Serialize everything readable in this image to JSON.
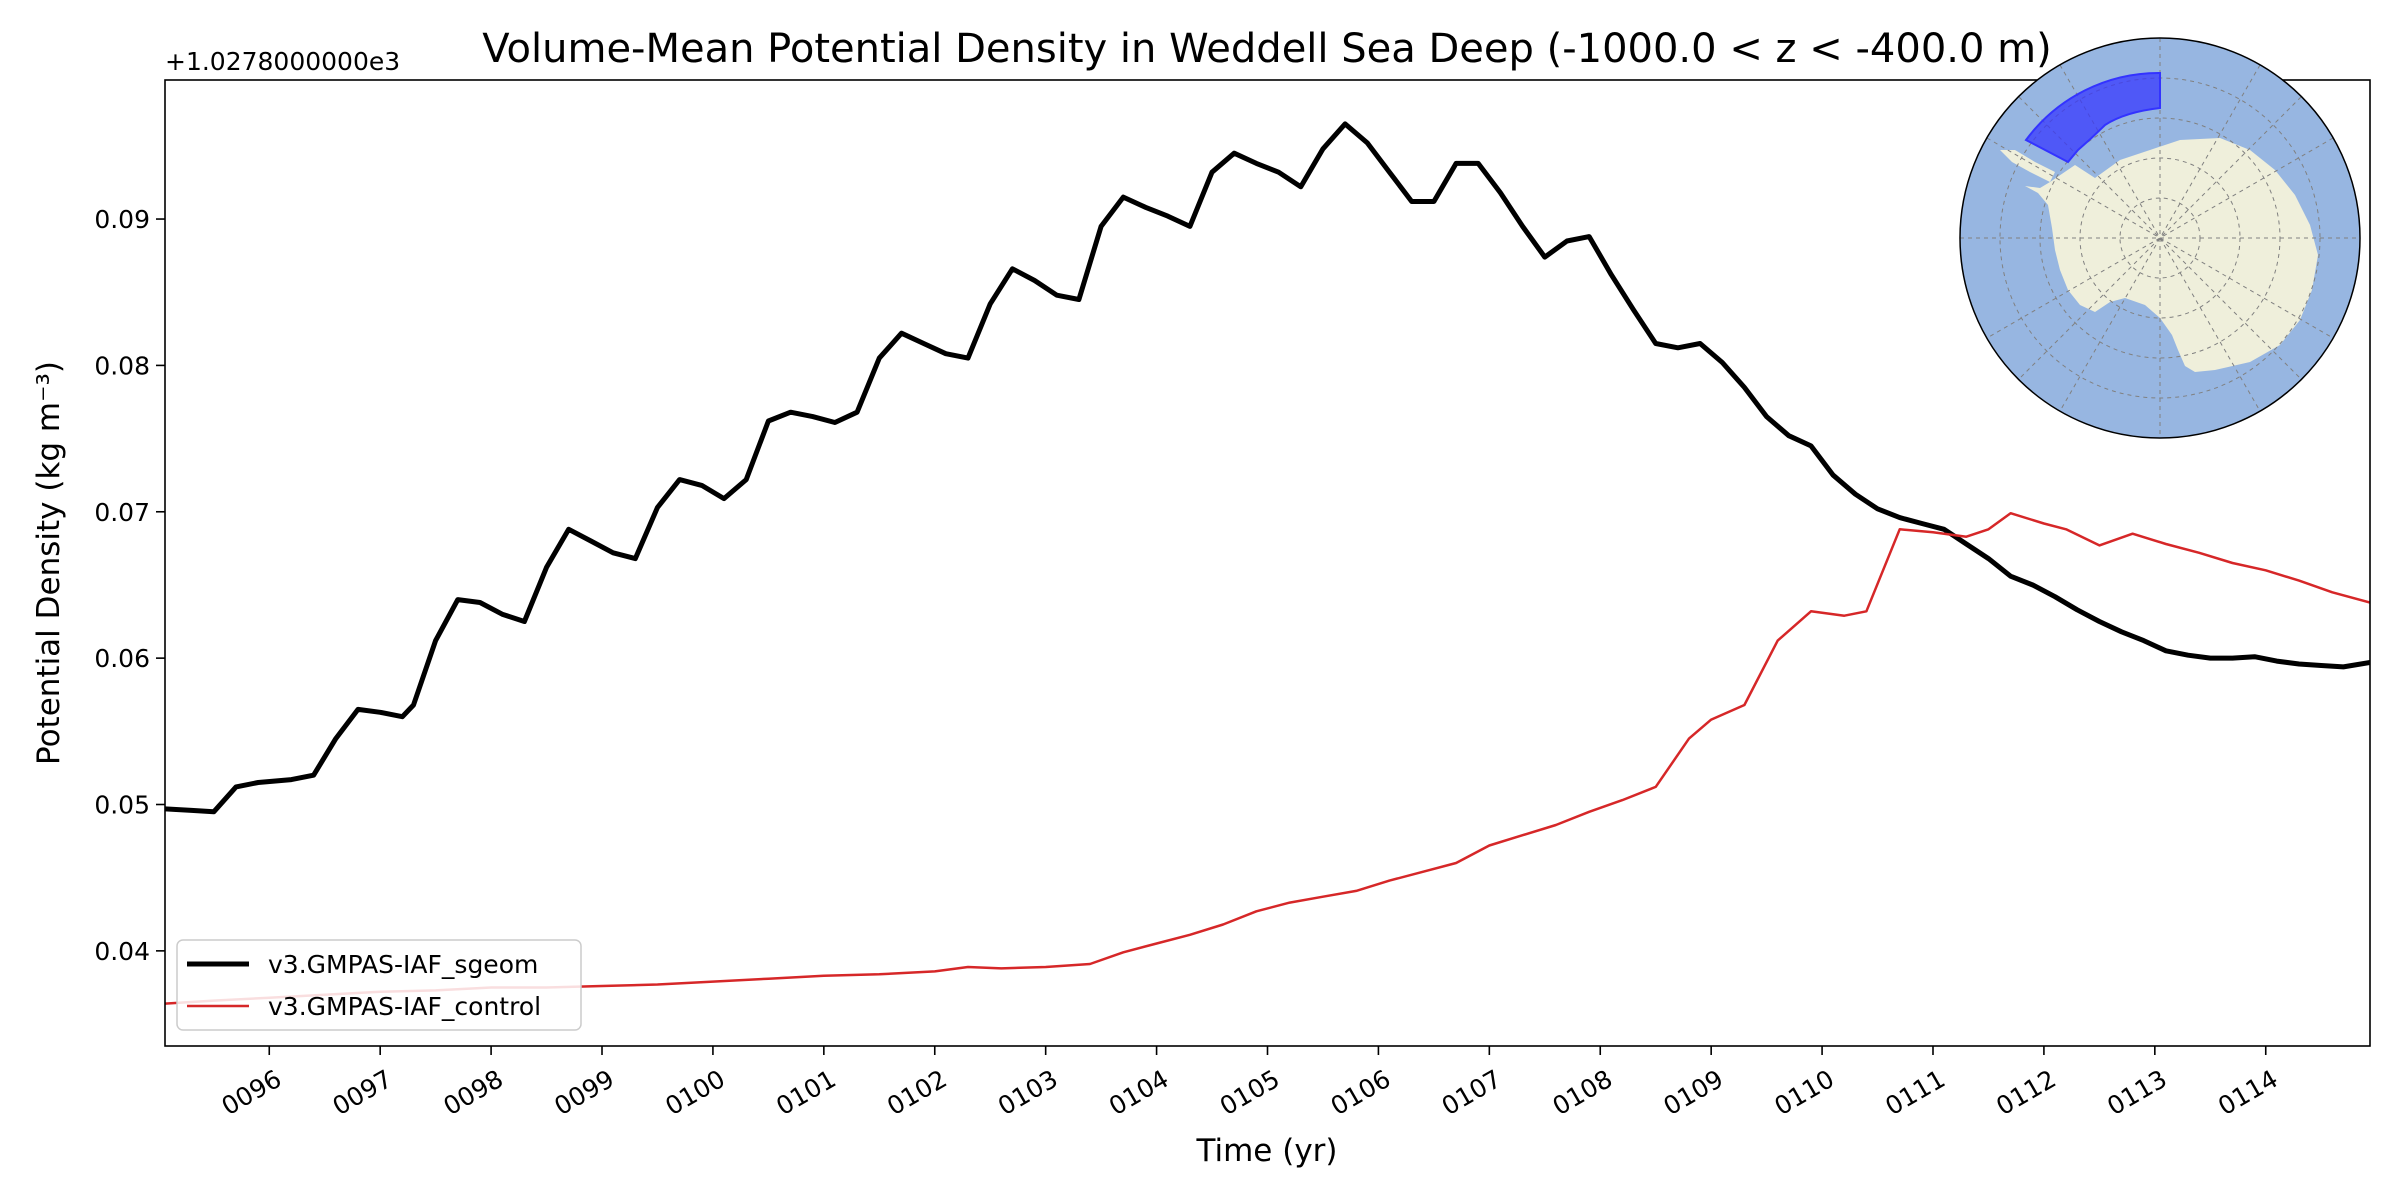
{
  "chart_data": {
    "type": "line",
    "title": "Volume-Mean Potential Density in Weddell Sea Deep (-1000.0 < z < -400.0 m)",
    "xlabel": "Time (yr)",
    "ylabel": "Potential Density (kg m⁻³)",
    "y_offset_label": "+1.0278000000e3",
    "xlim": [
      95.06,
      114.94
    ],
    "ylim": [
      0.0335,
      0.0995
    ],
    "x_ticks": [
      96,
      97,
      98,
      99,
      100,
      101,
      102,
      103,
      104,
      105,
      106,
      107,
      108,
      109,
      110,
      111,
      112,
      113,
      114
    ],
    "x_tick_labels": [
      "0096",
      "0097",
      "0098",
      "0099",
      "0100",
      "0101",
      "0102",
      "0103",
      "0104",
      "0105",
      "0106",
      "0107",
      "0108",
      "0109",
      "0110",
      "0111",
      "0112",
      "0113",
      "0114"
    ],
    "y_ticks": [
      0.04,
      0.05,
      0.06,
      0.07,
      0.08,
      0.09
    ],
    "y_tick_labels": [
      "0.04",
      "0.05",
      "0.06",
      "0.07",
      "0.08",
      "0.09"
    ],
    "grid": false,
    "legend_position": "lower-left",
    "series": [
      {
        "name": "v3.GMPAS-IAF_sgeom",
        "color": "#000000",
        "x": [
          95.06,
          95.3,
          95.5,
          95.7,
          95.9,
          96.2,
          96.4,
          96.6,
          96.8,
          97.0,
          97.2,
          97.3,
          97.5,
          97.7,
          97.9,
          98.1,
          98.3,
          98.5,
          98.7,
          98.9,
          99.1,
          99.3,
          99.5,
          99.7,
          99.9,
          100.1,
          100.3,
          100.5,
          100.7,
          100.9,
          101.1,
          101.3,
          101.5,
          101.7,
          101.9,
          102.1,
          102.3,
          102.5,
          102.7,
          102.9,
          103.1,
          103.3,
          103.5,
          103.7,
          103.9,
          104.1,
          104.3,
          104.5,
          104.7,
          104.9,
          105.1,
          105.3,
          105.5,
          105.7,
          105.9,
          106.1,
          106.3,
          106.5,
          106.7,
          106.9,
          107.1,
          107.3,
          107.5,
          107.7,
          107.9,
          108.1,
          108.3,
          108.5,
          108.7,
          108.9,
          109.1,
          109.3,
          109.5,
          109.7,
          109.9,
          110.1,
          110.3,
          110.5,
          110.7,
          110.9,
          111.1,
          111.3,
          111.5,
          111.7,
          111.9,
          112.1,
          112.3,
          112.5,
          112.7,
          112.9,
          113.1,
          113.3,
          113.5,
          113.7,
          113.9,
          114.1,
          114.3,
          114.5,
          114.7,
          114.94
        ],
        "y": [
          0.0497,
          0.0496,
          0.0495,
          0.0512,
          0.0515,
          0.0517,
          0.052,
          0.0545,
          0.0565,
          0.0563,
          0.056,
          0.0568,
          0.0612,
          0.064,
          0.0638,
          0.063,
          0.0625,
          0.0662,
          0.0688,
          0.068,
          0.0672,
          0.0668,
          0.0703,
          0.0722,
          0.0718,
          0.0709,
          0.0722,
          0.0762,
          0.0768,
          0.0765,
          0.0761,
          0.0768,
          0.0805,
          0.0822,
          0.0815,
          0.0808,
          0.0805,
          0.0842,
          0.0866,
          0.0858,
          0.0848,
          0.0845,
          0.0895,
          0.0915,
          0.0908,
          0.0902,
          0.0895,
          0.0932,
          0.0945,
          0.0938,
          0.0932,
          0.0922,
          0.0948,
          0.0965,
          0.0952,
          0.0932,
          0.0912,
          0.0912,
          0.0938,
          0.0938,
          0.0918,
          0.0895,
          0.0874,
          0.0885,
          0.0888,
          0.0862,
          0.0838,
          0.0815,
          0.0812,
          0.0815,
          0.0802,
          0.0785,
          0.0765,
          0.0752,
          0.0745,
          0.0725,
          0.0712,
          0.0702,
          0.0696,
          0.0692,
          0.0688,
          0.0678,
          0.0668,
          0.0656,
          0.065,
          0.0642,
          0.0633,
          0.0625,
          0.0618,
          0.0612,
          0.0605,
          0.0602,
          0.06,
          0.06,
          0.0601,
          0.0598,
          0.0596,
          0.0595,
          0.0594,
          0.0597
        ]
      },
      {
        "name": "v3.GMPAS-IAF_control",
        "color": "#d62728",
        "x": [
          95.06,
          95.5,
          96.0,
          96.5,
          97.0,
          97.5,
          98.0,
          98.5,
          99.0,
          99.5,
          100.0,
          100.5,
          101.0,
          101.5,
          102.0,
          102.3,
          102.6,
          103.0,
          103.4,
          103.7,
          104.0,
          104.3,
          104.6,
          104.9,
          105.2,
          105.5,
          105.8,
          106.1,
          106.4,
          106.7,
          107.0,
          107.3,
          107.6,
          107.9,
          108.2,
          108.5,
          108.8,
          109.0,
          109.3,
          109.6,
          109.9,
          110.2,
          110.4,
          110.7,
          111.0,
          111.3,
          111.5,
          111.7,
          112.0,
          112.2,
          112.5,
          112.8,
          113.1,
          113.4,
          113.7,
          114.0,
          114.3,
          114.6,
          114.94
        ],
        "y": [
          0.0364,
          0.0366,
          0.0368,
          0.037,
          0.0372,
          0.0373,
          0.0375,
          0.0375,
          0.0376,
          0.0377,
          0.0379,
          0.0381,
          0.0383,
          0.0384,
          0.0386,
          0.0389,
          0.0388,
          0.0389,
          0.0391,
          0.0399,
          0.0405,
          0.0411,
          0.0418,
          0.0427,
          0.0433,
          0.0437,
          0.0441,
          0.0448,
          0.0454,
          0.046,
          0.0472,
          0.0479,
          0.0486,
          0.0495,
          0.0503,
          0.0512,
          0.0545,
          0.0558,
          0.0568,
          0.0612,
          0.0632,
          0.0629,
          0.0632,
          0.0688,
          0.0686,
          0.0683,
          0.0688,
          0.0699,
          0.0692,
          0.0688,
          0.0677,
          0.0685,
          0.0678,
          0.0672,
          0.0665,
          0.066,
          0.0653,
          0.0645,
          0.0638
        ]
      }
    ],
    "inset_map": {
      "projection": "south-polar-stereographic",
      "ocean_color": "#97b6e1",
      "land_color": "#efefdb",
      "region_color": "#3333ff"
    }
  }
}
